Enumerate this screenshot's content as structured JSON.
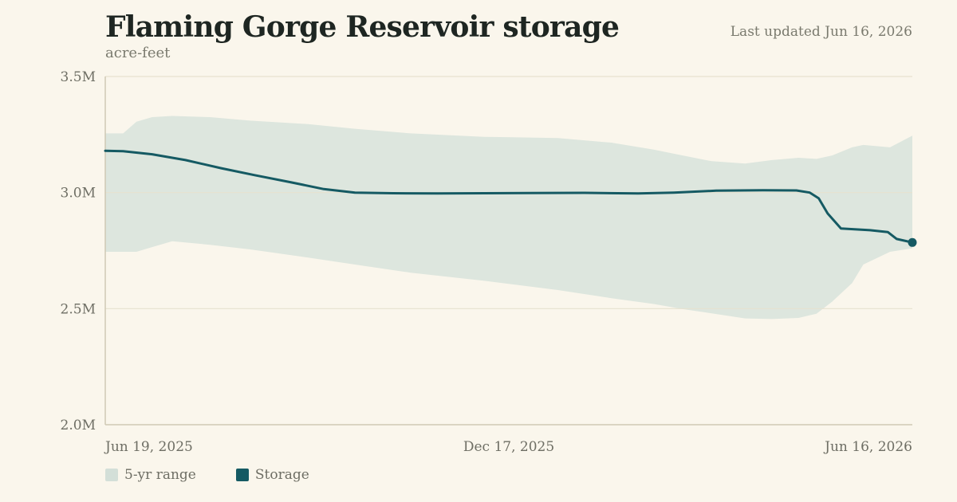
{
  "header": {
    "title": "Flaming Gorge Reservoir storage",
    "subtitle": "acre-feet",
    "updated": "Last updated Jun 16, 2026"
  },
  "colors": {
    "background": "#faf6ec",
    "band": "#dde6de",
    "line": "#155a63",
    "grid": "#e6e1cf",
    "axis": "#cfc9b4"
  },
  "chart_data": {
    "type": "area",
    "title": "Flaming Gorge Reservoir storage",
    "ylabel": "acre-feet",
    "ylim": [
      2000000,
      3500000
    ],
    "xlim": [
      "2025-06-19",
      "2026-06-16"
    ],
    "y_ticks": [
      {
        "value": 3500000,
        "label": "3.5M"
      },
      {
        "value": 3000000,
        "label": "3.0M"
      },
      {
        "value": 2500000,
        "label": "2.5M"
      },
      {
        "value": 2000000,
        "label": "2.0M"
      }
    ],
    "x_ticks": [
      {
        "value": "2025-06-19",
        "label": "Jun 19, 2025"
      },
      {
        "value": "2025-12-17",
        "label": "Dec 17, 2025"
      },
      {
        "value": "2026-06-16",
        "label": "Jun 16, 2026"
      }
    ],
    "grid": true,
    "legend_position": "bottom-left",
    "series": [
      {
        "name": "5-yr range",
        "type": "band",
        "x": [
          "2025-06-19",
          "2025-06-27",
          "2025-07-03",
          "2025-07-10",
          "2025-07-19",
          "2025-08-05",
          "2025-08-23",
          "2025-09-18",
          "2025-10-09",
          "2025-11-03",
          "2025-12-06",
          "2026-01-08",
          "2026-02-01",
          "2026-02-20",
          "2026-03-05",
          "2026-03-18",
          "2026-04-02",
          "2026-04-14",
          "2026-04-26",
          "2026-05-04",
          "2026-05-11",
          "2026-05-20",
          "2026-05-25",
          "2026-06-06",
          "2026-06-16"
        ],
        "low": [
          2745000,
          2745000,
          2745000,
          2765000,
          2790000,
          2775000,
          2755000,
          2720000,
          2690000,
          2655000,
          2620000,
          2580000,
          2545000,
          2520000,
          2498000,
          2480000,
          2458000,
          2455000,
          2460000,
          2478000,
          2530000,
          2610000,
          2690000,
          2745000,
          2760000
        ],
        "high": [
          3255000,
          3255000,
          3305000,
          3325000,
          3330000,
          3325000,
          3310000,
          3295000,
          3275000,
          3255000,
          3240000,
          3235000,
          3215000,
          3185000,
          3160000,
          3135000,
          3125000,
          3140000,
          3150000,
          3145000,
          3160000,
          3195000,
          3205000,
          3195000,
          3245000
        ]
      },
      {
        "name": "Storage",
        "type": "line",
        "x": [
          "2025-06-19",
          "2025-06-27",
          "2025-07-10",
          "2025-07-25",
          "2025-08-10",
          "2025-08-25",
          "2025-09-10",
          "2025-09-25",
          "2025-10-09",
          "2025-10-26",
          "2025-11-15",
          "2025-12-06",
          "2025-12-26",
          "2026-01-20",
          "2026-02-13",
          "2026-03-01",
          "2026-03-20",
          "2026-04-10",
          "2026-04-25",
          "2026-05-01",
          "2026-05-05",
          "2026-05-09",
          "2026-05-15",
          "2026-05-28",
          "2026-06-05",
          "2026-06-09",
          "2026-06-16"
        ],
        "values": [
          3180000,
          3178000,
          3165000,
          3140000,
          3105000,
          3075000,
          3045000,
          3015000,
          3000000,
          2997000,
          2996000,
          2997000,
          2998000,
          2999000,
          2996000,
          3000000,
          3008000,
          3010000,
          3009000,
          3000000,
          2975000,
          2910000,
          2845000,
          2838000,
          2830000,
          2800000,
          2785000
        ]
      }
    ]
  }
}
